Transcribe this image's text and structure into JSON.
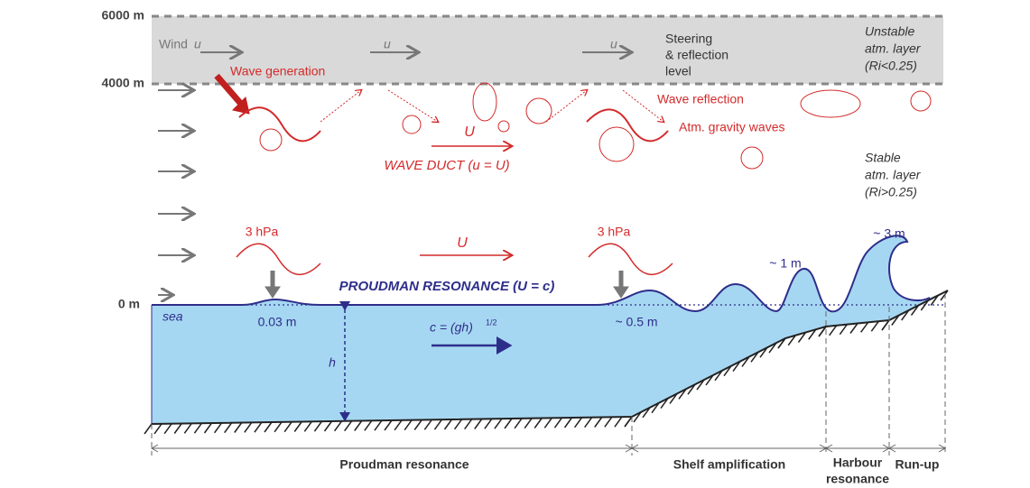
{
  "altitudes": [
    "6000 m",
    "4000 m",
    "0 m"
  ],
  "atmosphere": {
    "wind": "Wind",
    "wind_symbol": "u",
    "u_labels": [
      "u",
      "u"
    ],
    "steering": [
      "Steering",
      "& reflection",
      "level"
    ],
    "unstable": [
      "Unstable",
      "atm. layer",
      "(Ri<0.25)"
    ],
    "wave_generation": "Wave generation",
    "wave_reflection": "Wave reflection",
    "gravity_waves": "Atm. gravity waves",
    "duct_speed": "U",
    "wave_duct": "WAVE DUCT (u = U)",
    "stable": [
      "Stable",
      "atm. layer",
      "(Ri>0.25)"
    ]
  },
  "ocean": {
    "pressure_labels": [
      "3 hPa",
      "3 hPa"
    ],
    "disturbance_speed": "U",
    "proudman": "PROUDMAN RESONANCE (U = c)",
    "sea": "sea",
    "heights": [
      "0.03 m",
      "~ 0.5 m",
      "~ 1 m",
      "~ 3 m"
    ],
    "wave_speed": "c = (gh)",
    "wave_speed_exponent": "1/2",
    "depth": "h"
  },
  "zones": [
    "Proudman resonance",
    "Shelf amplification",
    "Harbour",
    "resonance",
    "Run-up"
  ]
}
